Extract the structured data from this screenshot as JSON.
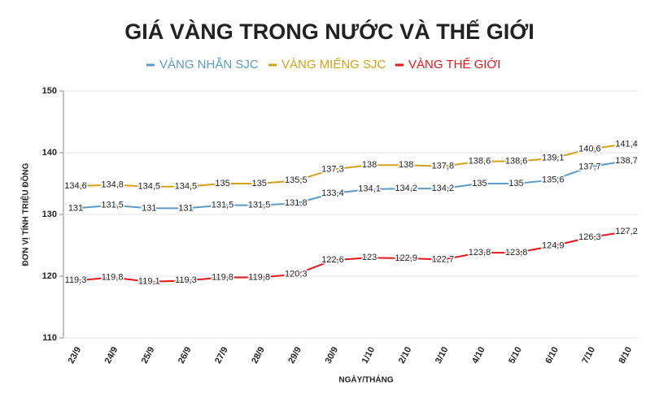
{
  "chart_data": {
    "type": "line",
    "title": "GIÁ VÀNG TRONG NƯỚC VÀ THẾ GIỚI",
    "x_label": "NGÀY/THÁNG",
    "y_label": "ĐƠN VỊ TÍNH TRIỆU ĐỒNG",
    "categories": [
      "23/9",
      "24/9",
      "25/9",
      "26/9",
      "27/9",
      "28/9",
      "29/9",
      "30/9",
      "1/10",
      "2/10",
      "3/10",
      "4/10",
      "5/10",
      "6/10",
      "7/10",
      "8/10"
    ],
    "ylim": [
      110,
      150
    ],
    "yticks": [
      110,
      120,
      130,
      140,
      150
    ],
    "grid": true,
    "series": [
      {
        "name": "VÀNG NHẪN SJC",
        "color": "#5b9bc4",
        "values": [
          131,
          131.5,
          131,
          131,
          131.5,
          131.5,
          131.8,
          133.4,
          134.1,
          134.2,
          134.2,
          135,
          135,
          135.6,
          137.7,
          138.7
        ],
        "value_labels": [
          "131",
          "131,5",
          "131",
          "131",
          "131,5",
          "131,5",
          "131,8",
          "133,4",
          "134,1",
          "134,2",
          "134,2",
          "135",
          "135",
          "135,6",
          "137,7",
          "138,7"
        ]
      },
      {
        "name": "VÀNG MIẾNG SJC",
        "color": "#d3a21c",
        "values": [
          134.6,
          134.8,
          134.5,
          134.5,
          135,
          135,
          135.5,
          137.3,
          138,
          138,
          137.8,
          138.6,
          138.6,
          139.1,
          140.6,
          141.4
        ],
        "value_labels": [
          "134,6",
          "134,8",
          "134,5",
          "134,5",
          "135",
          "135",
          "135,5",
          "137,3",
          "138",
          "138",
          "137,8",
          "138,6",
          "138,6",
          "139,1",
          "140,6",
          "141,4"
        ]
      },
      {
        "name": "VÀNG THẾ GIỚI",
        "color": "#e8161c",
        "values": [
          119.3,
          119.8,
          119.1,
          119.3,
          119.8,
          119.8,
          120.3,
          122.6,
          123,
          122.9,
          122.7,
          123.8,
          123.8,
          124.9,
          126.3,
          127.2
        ],
        "value_labels": [
          "119,3",
          "119,8",
          "119,1",
          "119,3",
          "119,8",
          "119,8",
          "120,3",
          "122,6",
          "123",
          "122,9",
          "122,7",
          "123,8",
          "123,8",
          "124,9",
          "126,3",
          "127,2"
        ]
      }
    ]
  }
}
